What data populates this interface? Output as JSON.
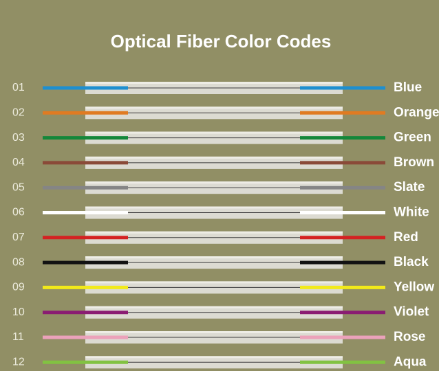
{
  "title": "Optical Fiber Color Codes",
  "fibers": [
    {
      "number": "01",
      "name": "Blue",
      "color": "#1e8fd0"
    },
    {
      "number": "02",
      "name": "Orange",
      "color": "#e07b22"
    },
    {
      "number": "03",
      "name": "Green",
      "color": "#14873a"
    },
    {
      "number": "04",
      "name": "Brown",
      "color": "#8a4a38"
    },
    {
      "number": "05",
      "name": "Slate",
      "color": "#858585"
    },
    {
      "number": "06",
      "name": "White",
      "color": "#ffffff"
    },
    {
      "number": "07",
      "name": "Red",
      "color": "#d42222"
    },
    {
      "number": "08",
      "name": "Black",
      "color": "#121212"
    },
    {
      "number": "09",
      "name": "Yellow",
      "color": "#f2ea1a"
    },
    {
      "number": "10",
      "name": "Violet",
      "color": "#8a1c72"
    },
    {
      "number": "11",
      "name": "Rose",
      "color": "#eba2ba"
    },
    {
      "number": "12",
      "name": "Aqua",
      "color": "#82c242"
    }
  ]
}
